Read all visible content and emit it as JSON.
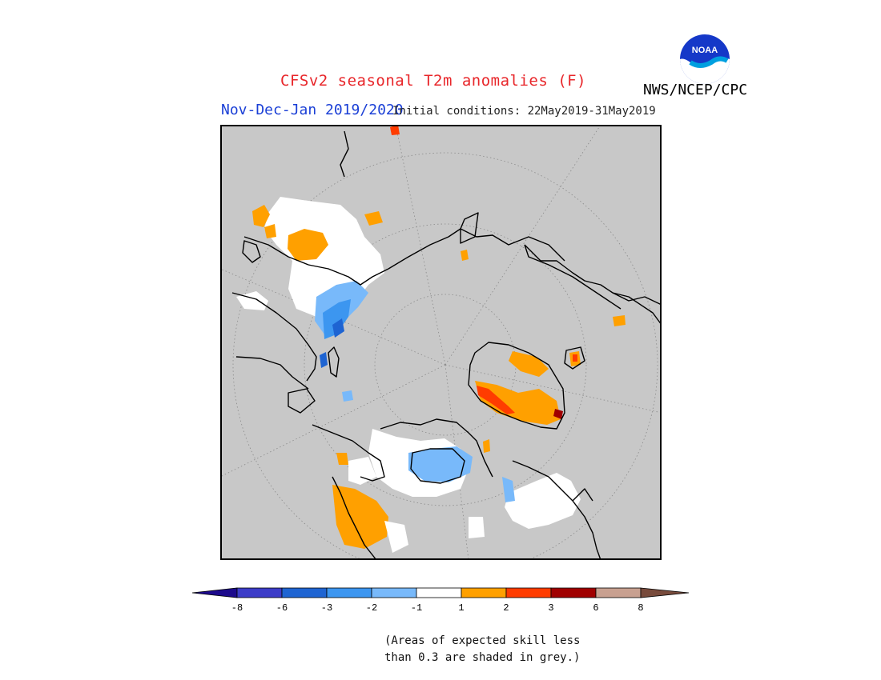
{
  "header": {
    "title": "CFSv2 seasonal T2m anomalies (F)",
    "period": "Nov-Dec-Jan 2019/2020",
    "initial_conditions": "Initial conditions: 22May2019-31May2019",
    "organization": "NWS/NCEP/CPC",
    "logo_text": "NOAA"
  },
  "colorbar": {
    "tick_labels": [
      "-8",
      "-6",
      "-3",
      "-2",
      "-1",
      "1",
      "2",
      "3",
      "6",
      "8"
    ],
    "colors": {
      "lt_-8": "#1c0a8c",
      "-8_-6": "#3c3cc8",
      "-6_-3": "#1e64d2",
      "-3_-2": "#3c96f0",
      "-2_-1": "#78b9fa",
      "-1_1": "#ffffff",
      "1_2": "#ffa000",
      "2_3": "#ff3c00",
      "3_6": "#a00000",
      "6_8": "#c8a090",
      "gt_8": "#784b3c"
    }
  },
  "note": {
    "line1": "(Areas of expected skill less",
    "line2": "than 0.3 are shaded in grey.)"
  },
  "map": {
    "projection": "north-polar-stereographic",
    "background": "#c8c8c8",
    "coastline_color": "#000000"
  }
}
